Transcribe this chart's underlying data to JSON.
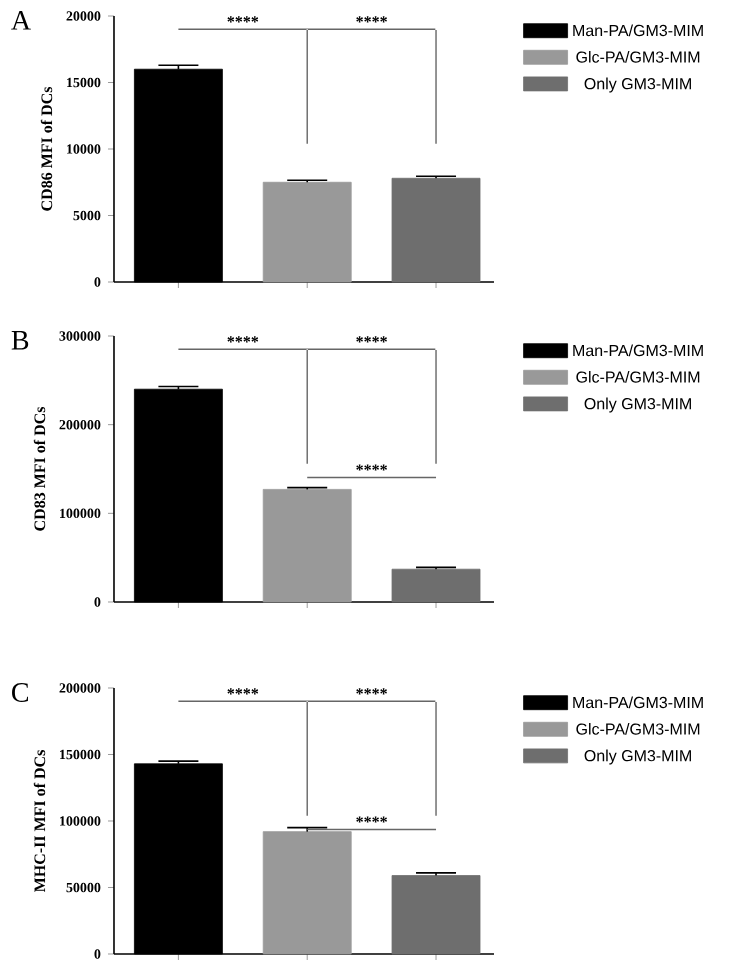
{
  "chart_data": [
    {
      "type": "bar",
      "title": "A",
      "ylabel": "CD86 MFI of DCs",
      "categories": [
        null,
        null,
        null
      ],
      "ylim": [
        0,
        20000
      ],
      "yticks": [
        0,
        5000,
        10000,
        15000,
        20000
      ],
      "legend": "right",
      "annotations": [
        "****",
        "****"
      ],
      "series": [
        {
          "name": "Man-PA/GM3-MIM",
          "color": "#000000",
          "values": [
            16000,
            null,
            null
          ],
          "errors": [
            300,
            null,
            null
          ]
        },
        {
          "name": "Glc-PA/GM3-MIM",
          "color": "#999999",
          "values": [
            null,
            7500,
            null
          ],
          "errors": [
            null,
            150,
            null
          ]
        },
        {
          "name": "Only GM3-MIM",
          "color": "#6e6e6e",
          "values": [
            null,
            null,
            7800
          ],
          "errors": [
            null,
            null,
            150
          ]
        }
      ]
    },
    {
      "type": "bar",
      "title": "B",
      "ylabel": "CD83 MFI of DCs",
      "categories": [
        null,
        null,
        null
      ],
      "ylim": [
        0,
        300000
      ],
      "yticks": [
        0,
        100000,
        200000,
        300000
      ],
      "legend": "right",
      "annotations": [
        "****",
        "****",
        "****"
      ],
      "series": [
        {
          "name": "Man-PA/GM3-MIM",
          "color": "#000000",
          "values": [
            240000,
            null,
            null
          ],
          "errors": [
            3000,
            null,
            null
          ]
        },
        {
          "name": "Glc-PA/GM3-MIM",
          "color": "#999999",
          "values": [
            null,
            127000,
            null
          ],
          "errors": [
            null,
            2000,
            null
          ]
        },
        {
          "name": "Only GM3-MIM",
          "color": "#6e6e6e",
          "values": [
            null,
            null,
            37000
          ],
          "errors": [
            null,
            null,
            2000
          ]
        }
      ]
    },
    {
      "type": "bar",
      "title": "C",
      "ylabel": "MHC-II MFI of DCs",
      "categories": [
        null,
        null,
        null
      ],
      "ylim": [
        0,
        200000
      ],
      "yticks": [
        0,
        50000,
        100000,
        150000,
        200000
      ],
      "legend": "right",
      "annotations": [
        "****",
        "****",
        "****"
      ],
      "series": [
        {
          "name": "Man-PA/GM3-MIM",
          "color": "#000000",
          "values": [
            143000,
            null,
            null
          ],
          "errors": [
            2000,
            null,
            null
          ]
        },
        {
          "name": "Glc-PA/GM3-MIM",
          "color": "#999999",
          "values": [
            null,
            92000,
            null
          ],
          "errors": [
            null,
            3000,
            null
          ]
        },
        {
          "name": "Only GM3-MIM",
          "color": "#6e6e6e",
          "values": [
            null,
            null,
            59000
          ],
          "errors": [
            null,
            null,
            2000
          ]
        }
      ]
    }
  ]
}
